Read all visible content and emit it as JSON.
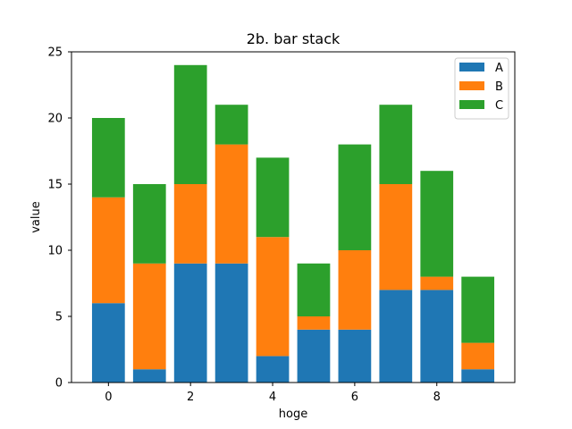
{
  "chart_data": {
    "type": "bar",
    "stacked": true,
    "title": "2b. bar stack",
    "xlabel": "hoge",
    "ylabel": "value",
    "x": [
      0,
      1,
      2,
      3,
      4,
      5,
      6,
      7,
      8,
      9
    ],
    "xticks": [
      0,
      2,
      4,
      6,
      8
    ],
    "yticks": [
      0,
      5,
      10,
      15,
      20,
      25
    ],
    "xlim": [
      -0.9,
      9.9
    ],
    "ylim": [
      0,
      25
    ],
    "grid": false,
    "legend_position": "top-right",
    "series": [
      {
        "name": "A",
        "color": "#1f77b4",
        "values": [
          6,
          1,
          9,
          9,
          2,
          4,
          4,
          7,
          7,
          1
        ]
      },
      {
        "name": "B",
        "color": "#ff7f0e",
        "values": [
          8,
          8,
          6,
          9,
          9,
          1,
          6,
          8,
          1,
          2
        ]
      },
      {
        "name": "C",
        "color": "#2ca02c",
        "values": [
          6,
          6,
          9,
          3,
          6,
          4,
          8,
          6,
          8,
          5
        ]
      }
    ]
  }
}
